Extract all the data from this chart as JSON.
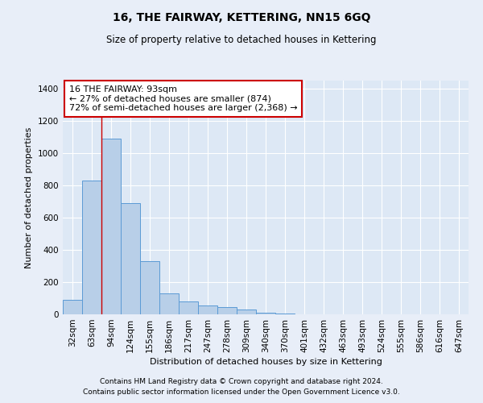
{
  "title": "16, THE FAIRWAY, KETTERING, NN15 6GQ",
  "subtitle": "Size of property relative to detached houses in Kettering",
  "xlabel": "Distribution of detached houses by size in Kettering",
  "ylabel": "Number of detached properties",
  "bar_values": [
    90,
    830,
    1090,
    690,
    330,
    130,
    80,
    55,
    45,
    30,
    10,
    5,
    0,
    0,
    0,
    0,
    0,
    0,
    0,
    0,
    0
  ],
  "bar_labels": [
    "32sqm",
    "63sqm",
    "94sqm",
    "124sqm",
    "155sqm",
    "186sqm",
    "217sqm",
    "247sqm",
    "278sqm",
    "309sqm",
    "340sqm",
    "370sqm",
    "401sqm",
    "432sqm",
    "463sqm",
    "493sqm",
    "524sqm",
    "555sqm",
    "586sqm",
    "616sqm",
    "647sqm"
  ],
  "bar_color": "#b8cfe8",
  "bar_edge_color": "#5b9bd5",
  "annotation_box_color": "#cc0000",
  "annotation_line_color": "#cc0000",
  "annotation_text": "16 THE FAIRWAY: 93sqm\n← 27% of detached houses are smaller (874)\n72% of semi-detached houses are larger (2,368) →",
  "ylim": [
    0,
    1450
  ],
  "yticks": [
    0,
    200,
    400,
    600,
    800,
    1000,
    1200,
    1400
  ],
  "footer_line1": "Contains HM Land Registry data © Crown copyright and database right 2024.",
  "footer_line2": "Contains public sector information licensed under the Open Government Licence v3.0.",
  "background_color": "#e8eef8",
  "plot_background_color": "#dde8f5",
  "grid_color": "#ffffff",
  "fig_width": 6.0,
  "fig_height": 5.0,
  "title_fontsize": 10,
  "subtitle_fontsize": 8.5,
  "axis_label_fontsize": 8,
  "tick_fontsize": 7.5,
  "footer_fontsize": 6.5,
  "annotation_fontsize": 8
}
